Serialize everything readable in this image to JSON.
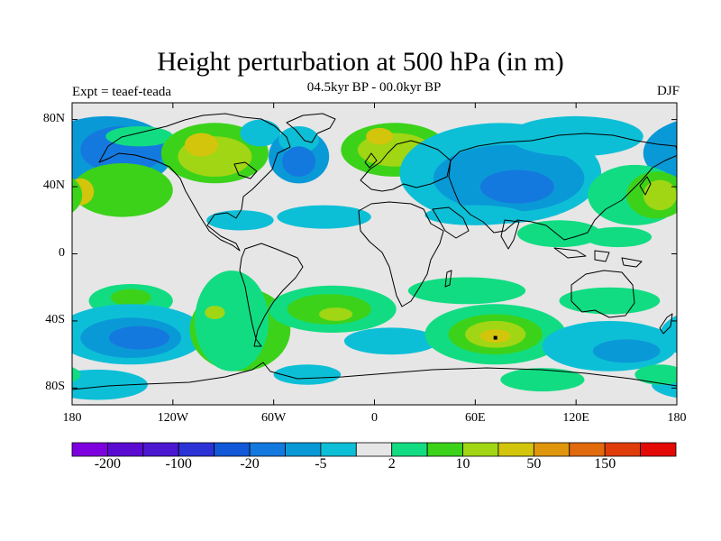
{
  "title": "Height perturbation at 500 hPa (in m)",
  "subtitle": "04.5kyr BP - 00.0kyr BP",
  "left_label": "Expt = teaef-teada",
  "right_label": "DJF",
  "axes": {
    "y_ticks": [
      "80N",
      "40N",
      "0",
      "40S",
      "80S"
    ],
    "x_ticks": [
      "180",
      "120W",
      "60W",
      "0",
      "60E",
      "120E",
      "180"
    ]
  },
  "colorbar": {
    "colors": [
      "#7f00df",
      "#5b0ad2",
      "#4b17d1",
      "#2b33d6",
      "#1159d8",
      "#1479de",
      "#0a99d7",
      "#0dbfd6",
      "#e6e6e6",
      "#12dc82",
      "#3cd21a",
      "#a0d614",
      "#d3c50c",
      "#df960c",
      "#e06a0c",
      "#e03c0a",
      "#e30a05"
    ],
    "labels": [
      "-200",
      "-100",
      "-20",
      "-5",
      "2",
      "10",
      "50",
      "150"
    ]
  },
  "map": {
    "background_color": "#e6e6e6",
    "blobs": [
      {
        "c": 6,
        "lon": -160,
        "lat": 60,
        "rl": 40,
        "ra": 22
      },
      {
        "c": 5,
        "lon": -150,
        "lat": 62,
        "rl": 25,
        "ra": 14
      },
      {
        "c": 9,
        "lon": -140,
        "lat": 70,
        "rl": 20,
        "ra": 6
      },
      {
        "c": 11,
        "lon": -150,
        "lat": 38,
        "rl": 22,
        "ra": 12
      },
      {
        "c": 10,
        "lon": -150,
        "lat": 38,
        "rl": 30,
        "ra": 16
      },
      {
        "c": 12,
        "lon": -175,
        "lat": 37,
        "rl": 8,
        "ra": 8
      },
      {
        "c": 10,
        "lon": -95,
        "lat": 60,
        "rl": 32,
        "ra": 18
      },
      {
        "c": 11,
        "lon": -95,
        "lat": 58,
        "rl": 22,
        "ra": 12
      },
      {
        "c": 12,
        "lon": -103,
        "lat": 65,
        "rl": 10,
        "ra": 7
      },
      {
        "c": 7,
        "lon": -68,
        "lat": 72,
        "rl": 12,
        "ra": 8
      },
      {
        "c": 6,
        "lon": -45,
        "lat": 58,
        "rl": 18,
        "ra": 16
      },
      {
        "c": 7,
        "lon": -45,
        "lat": 68,
        "rl": 12,
        "ra": 8
      },
      {
        "c": 5,
        "lon": -45,
        "lat": 55,
        "rl": 10,
        "ra": 9
      },
      {
        "c": 7,
        "lon": -30,
        "lat": 22,
        "rl": 28,
        "ra": 7
      },
      {
        "c": 10,
        "lon": 12,
        "lat": 62,
        "rl": 32,
        "ra": 16
      },
      {
        "c": 11,
        "lon": 12,
        "lat": 62,
        "rl": 22,
        "ra": 10
      },
      {
        "c": 12,
        "lon": 3,
        "lat": 70,
        "rl": 8,
        "ra": 5
      },
      {
        "c": 7,
        "lon": 75,
        "lat": 48,
        "rl": 60,
        "ra": 30
      },
      {
        "c": 6,
        "lon": 80,
        "lat": 45,
        "rl": 45,
        "ra": 20
      },
      {
        "c": 5,
        "lon": 85,
        "lat": 40,
        "rl": 22,
        "ra": 10
      },
      {
        "c": 7,
        "lon": 120,
        "lat": 70,
        "rl": 40,
        "ra": 12
      },
      {
        "c": 9,
        "lon": 155,
        "lat": 35,
        "rl": 28,
        "ra": 18
      },
      {
        "c": 10,
        "lon": 168,
        "lat": 35,
        "rl": 18,
        "ra": 14
      },
      {
        "c": 11,
        "lon": 170,
        "lat": 35,
        "rl": 10,
        "ra": 9
      },
      {
        "c": 9,
        "lon": 110,
        "lat": 12,
        "rl": 25,
        "ra": 8
      },
      {
        "c": 9,
        "lon": 145,
        "lat": 10,
        "rl": 20,
        "ra": 6
      },
      {
        "c": 7,
        "lon": 60,
        "lat": 23,
        "rl": 30,
        "ra": 6
      },
      {
        "c": 7,
        "lon": -80,
        "lat": 20,
        "rl": 20,
        "ra": 6
      },
      {
        "c": 9,
        "lon": -145,
        "lat": -28,
        "rl": 25,
        "ra": 10
      },
      {
        "c": 10,
        "lon": -145,
        "lat": -26,
        "rl": 12,
        "ra": 5
      },
      {
        "c": 7,
        "lon": -145,
        "lat": -48,
        "rl": 45,
        "ra": 18
      },
      {
        "c": 6,
        "lon": -145,
        "lat": -50,
        "rl": 30,
        "ra": 12
      },
      {
        "c": 5,
        "lon": -140,
        "lat": -50,
        "rl": 18,
        "ra": 7
      },
      {
        "c": 10,
        "lon": -80,
        "lat": -45,
        "rl": 30,
        "ra": 25
      },
      {
        "c": 9,
        "lon": -85,
        "lat": -40,
        "rl": 22,
        "ra": 30
      },
      {
        "c": 11,
        "lon": -95,
        "lat": -35,
        "rl": 6,
        "ra": 4
      },
      {
        "c": 9,
        "lon": -25,
        "lat": -33,
        "rl": 38,
        "ra": 14
      },
      {
        "c": 10,
        "lon": -27,
        "lat": -33,
        "rl": 25,
        "ra": 9
      },
      {
        "c": 11,
        "lon": -23,
        "lat": -36,
        "rl": 10,
        "ra": 4
      },
      {
        "c": 7,
        "lon": 10,
        "lat": -52,
        "rl": 28,
        "ra": 8
      },
      {
        "c": 9,
        "lon": 55,
        "lat": -22,
        "rl": 35,
        "ra": 8
      },
      {
        "c": 9,
        "lon": 72,
        "lat": -48,
        "rl": 42,
        "ra": 18
      },
      {
        "c": 10,
        "lon": 72,
        "lat": -48,
        "rl": 28,
        "ra": 12
      },
      {
        "c": 11,
        "lon": 72,
        "lat": -48,
        "rl": 18,
        "ra": 8
      },
      {
        "c": 12,
        "lon": 72,
        "lat": -49,
        "rl": 9,
        "ra": 4
      },
      {
        "c": 9,
        "lon": 140,
        "lat": -28,
        "rl": 30,
        "ra": 8
      },
      {
        "c": 7,
        "lon": 140,
        "lat": -55,
        "rl": 40,
        "ra": 15
      },
      {
        "c": 6,
        "lon": 150,
        "lat": -58,
        "rl": 20,
        "ra": 7
      },
      {
        "c": 9,
        "lon": 100,
        "lat": -75,
        "rl": 25,
        "ra": 7
      },
      {
        "c": 7,
        "lon": -165,
        "lat": -78,
        "rl": 30,
        "ra": 9
      },
      {
        "c": 7,
        "lon": -40,
        "lat": -72,
        "rl": 20,
        "ra": 6
      },
      {
        "c": 9,
        "lon": 170,
        "lat": -72,
        "rl": 15,
        "ra": 6
      }
    ]
  }
}
